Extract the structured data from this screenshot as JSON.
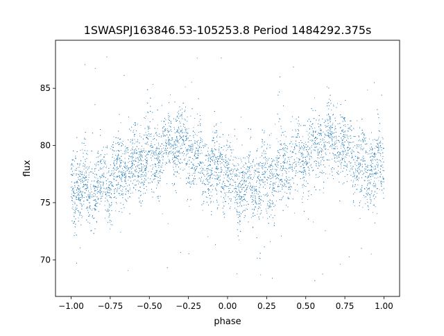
{
  "chart_data": {
    "type": "scatter",
    "title": "1SWASPJ163846.53-105253.8 Period 1484292.375s",
    "xlabel": "phase",
    "ylabel": "flux",
    "xlim": [
      -1.1,
      1.1
    ],
    "ylim": [
      66.8,
      89.2
    ],
    "xticks": [
      -1.0,
      -0.75,
      -0.5,
      -0.25,
      0.0,
      0.25,
      0.5,
      0.75,
      1.0
    ],
    "xtick_labels": [
      "−1.00",
      "−0.75",
      "−0.50",
      "−0.25",
      "0.00",
      "0.25",
      "0.50",
      "0.75",
      "1.00"
    ],
    "yticks": [
      70,
      75,
      80,
      85
    ],
    "ytick_labels": [
      "70",
      "75",
      "80",
      "85"
    ],
    "grid": false,
    "point_color": "#1f77b4",
    "trend": {
      "phase": [
        0.0,
        0.05,
        0.1,
        0.15,
        0.2,
        0.25,
        0.3,
        0.35,
        0.4,
        0.45,
        0.5,
        0.55,
        0.6,
        0.65,
        0.7,
        0.75,
        0.8,
        0.85,
        0.9,
        0.95,
        1.0
      ],
      "flux": [
        76.5,
        76.3,
        76.2,
        76.5,
        76.8,
        77.0,
        77.5,
        78.2,
        78.6,
        78.8,
        79.0,
        79.3,
        79.8,
        80.6,
        80.4,
        79.6,
        78.8,
        78.2,
        77.9,
        78.2,
        77.8
      ]
    },
    "scatter_sigma": 1.6,
    "points_per_phase_unit": 4000,
    "outlier_range": [
      67.8,
      88.2
    ]
  }
}
